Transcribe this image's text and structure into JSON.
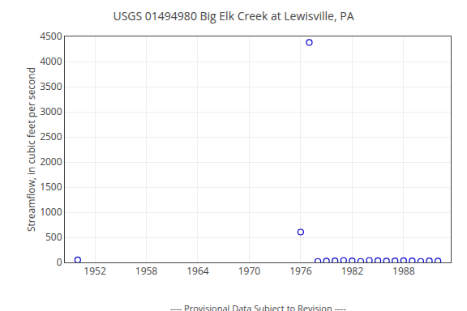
{
  "chart_data": {
    "type": "scatter",
    "title": "USGS 01494980 Big Elk Creek at Lewisville, PA",
    "subtitle": "---- Provisional Data Subject to Revision ----",
    "ylabel": "Streamflow, in cubic feet per second",
    "x": [
      1950,
      1976,
      1977,
      1978,
      1979,
      1980,
      1981,
      1982,
      1983,
      1984,
      1985,
      1986,
      1987,
      1988,
      1989,
      1990,
      1991,
      1992
    ],
    "values": [
      50,
      605,
      4380,
      20,
      25,
      30,
      40,
      30,
      20,
      40,
      35,
      25,
      30,
      35,
      30,
      20,
      30,
      25
    ],
    "color": "#0000cc",
    "marker": "circle-open",
    "xlim": [
      1948.5,
      1993.5
    ],
    "ylim": [
      0,
      4500
    ],
    "xticks": [
      1952,
      1958,
      1964,
      1970,
      1976,
      1982,
      1988
    ],
    "yticks": [
      0,
      500,
      1000,
      1500,
      2000,
      2500,
      3000,
      3500,
      4000,
      4500
    ],
    "grid": true
  }
}
